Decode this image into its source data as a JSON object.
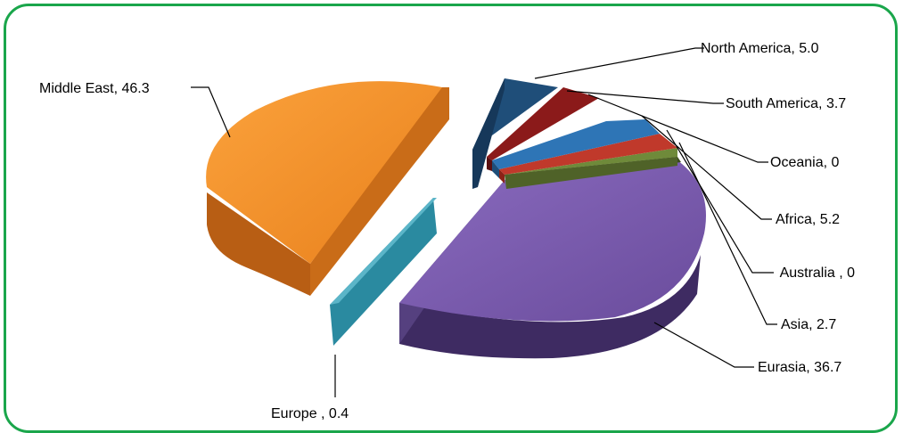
{
  "chart_data": {
    "type": "pie",
    "title": "",
    "categories": [
      "North America",
      "South America",
      "Oceania",
      "Africa",
      "Australia ",
      "Asia",
      "Eurasia",
      "Europe ",
      "Middle East"
    ],
    "values": [
      5.0,
      3.7,
      0,
      5.2,
      0,
      2.7,
      36.7,
      0.4,
      46.3
    ],
    "labels": [
      "North America, 5.0",
      "South America, 3.7",
      "Oceania, 0",
      "Africa, 5.2",
      " Australia , 0",
      "Asia, 2.7",
      "Eurasia, 36.7",
      "Europe , 0.4",
      "Middle East, 46.3"
    ],
    "colors": [
      "#1f4e79",
      "#8b1a1a",
      "#4f6228",
      "#2e75b6",
      "#c0392b",
      "#4f6228",
      "#6a4c9c",
      "#2a8aa0",
      "#f08a24"
    ],
    "style": "3d-exploded",
    "legend": "none"
  }
}
